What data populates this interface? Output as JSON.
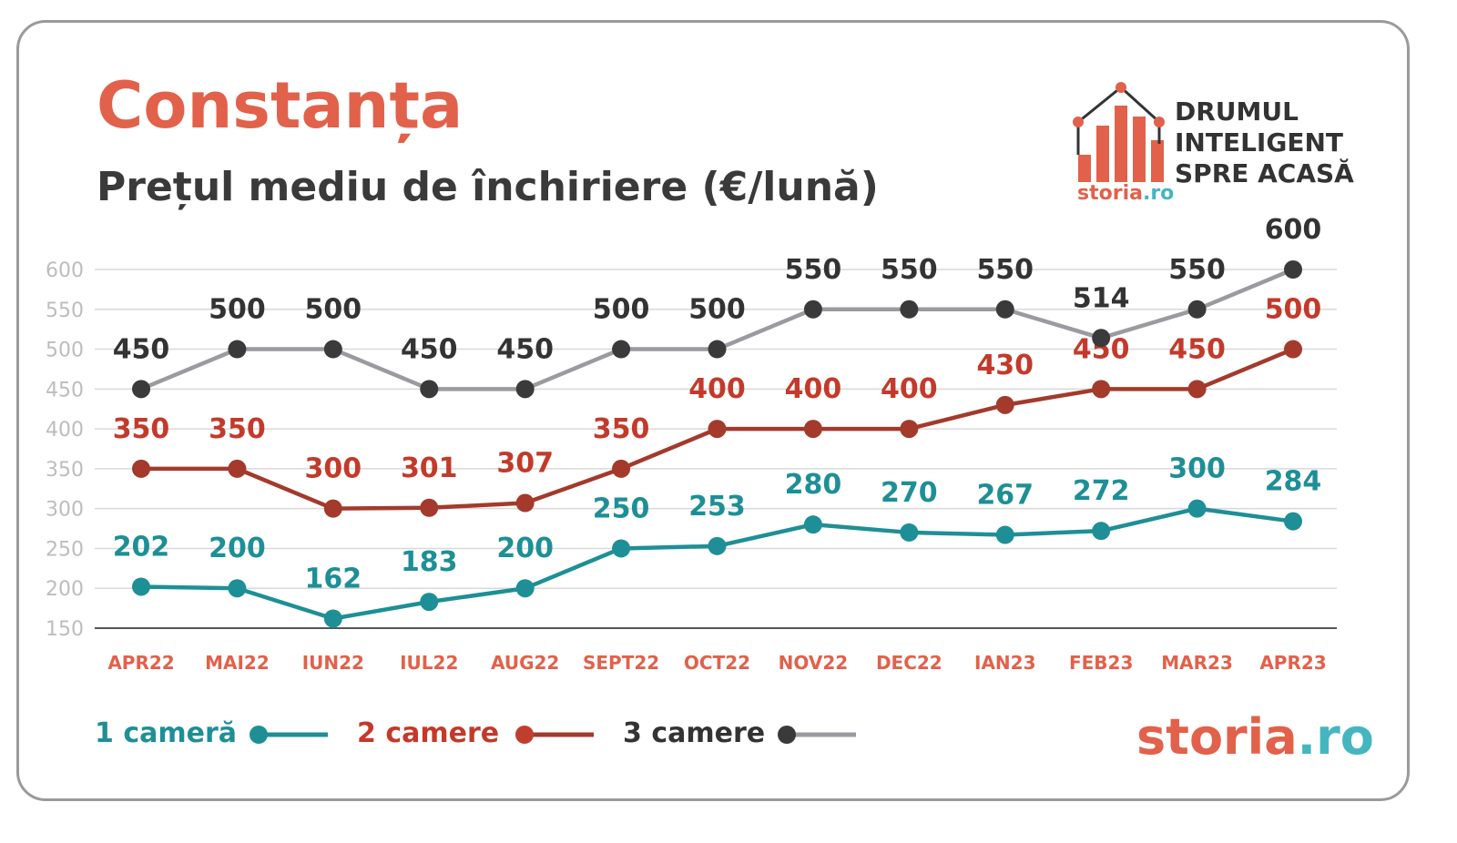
{
  "header": {
    "title": "Constanța",
    "subtitle": "Prețul mediu de închiriere (€/lună)"
  },
  "logo": {
    "lines": [
      "DRUMUL",
      "INTELIGENT",
      "SPRE ACASĂ"
    ],
    "small_brand_main": "storia",
    "small_brand_tld": ".ro",
    "big_brand_main": "storia",
    "big_brand_tld": ".ro"
  },
  "chart_data": {
    "type": "line",
    "title": "Prețul mediu de închiriere (€/lună)",
    "categories": [
      "APR22",
      "MAI22",
      "IUN22",
      "IUL22",
      "AUG22",
      "SEPT22",
      "OCT22",
      "NOV22",
      "DEC22",
      "IAN23",
      "FEB23",
      "MAR23",
      "APR23"
    ],
    "yticks": [
      150,
      200,
      250,
      300,
      350,
      400,
      450,
      500,
      550,
      600
    ],
    "ylim": [
      150,
      600
    ],
    "grid": true,
    "legend_position": "bottom-left",
    "series": [
      {
        "name": "1 cameră",
        "values": [
          202,
          200,
          162,
          183,
          200,
          250,
          253,
          280,
          270,
          267,
          272,
          300,
          284
        ],
        "color": "#1e8f96",
        "label_color": "#1e8f96"
      },
      {
        "name": "2 camere",
        "values": [
          350,
          350,
          300,
          301,
          307,
          350,
          400,
          400,
          400,
          430,
          450,
          450,
          500
        ],
        "color": "#a33a2b",
        "label_color": "#c33a2a"
      },
      {
        "name": "3 camere",
        "values": [
          450,
          500,
          500,
          450,
          450,
          500,
          500,
          550,
          550,
          550,
          514,
          550,
          600
        ],
        "color": "#9b9aa0",
        "marker_color": "#3a3a3a",
        "label_color": "#333333"
      }
    ],
    "colors": {
      "grid": "#d9d9d9",
      "axis": "#555555",
      "ytick": "#bdbdbd",
      "xtick": "#e2614a"
    }
  }
}
